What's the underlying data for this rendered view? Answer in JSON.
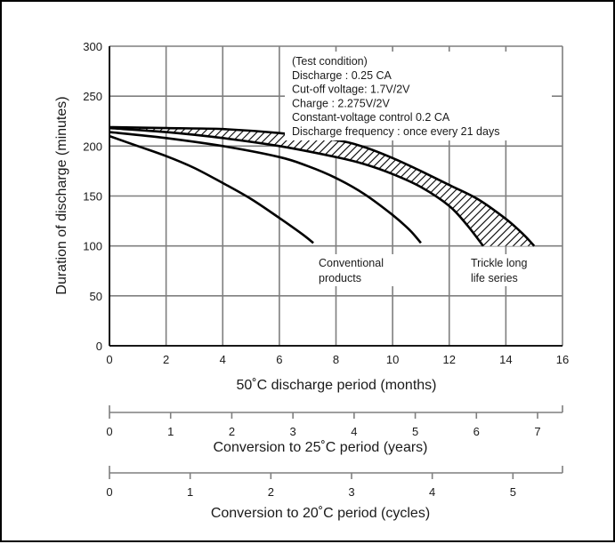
{
  "chart_data": {
    "type": "line",
    "xlabel": "50˚C discharge period (months)",
    "ylabel": "Duration of discharge (minutes)",
    "xlim": [
      0,
      16
    ],
    "ylim": [
      0,
      300
    ],
    "x_ticks": [
      "0",
      "2",
      "4",
      "6",
      "8",
      "10",
      "12",
      "14",
      "16"
    ],
    "y_ticks": [
      "0",
      "50",
      "100",
      "150",
      "200",
      "250",
      "300"
    ],
    "grid": true,
    "test_condition": [
      "(Test condition)",
      "Discharge : 0.25 CA",
      "Cut-off voltage: 1.7V/2V",
      "Charge : 2.275V/2V",
      "Constant-voltage control 0.2 CA",
      "Discharge frequency : once every 21 days"
    ],
    "series": [
      {
        "label_lines": [
          "Conventional",
          "products"
        ],
        "style": "line",
        "curves": [
          {
            "x": [
              0,
              1,
              2,
              3,
              4,
              5,
              6,
              6.8,
              7.2
            ],
            "y": [
              210,
              200,
              190,
              178,
              163,
              147,
              128,
              112,
              103
            ]
          },
          {
            "x": [
              0,
              2,
              4,
              6,
              7,
              8,
              9,
              10,
              10.6,
              11
            ],
            "y": [
              214,
              208,
              200,
              189,
              180,
              168,
              152,
              131,
              116,
              103
            ]
          }
        ]
      },
      {
        "label_lines": [
          "Trickle long",
          "life series"
        ],
        "style": "hatched-band",
        "band": {
          "lower": {
            "x": [
              0,
              2,
              4,
              6,
              8,
              9,
              10,
              11,
              12,
              12.6,
              13.2
            ],
            "y": [
              218,
              214,
              208,
              200,
              189,
              182,
              172,
              159,
              140,
              122,
              100
            ]
          },
          "upper": {
            "x": [
              0,
              2,
              4,
              6,
              8,
              9,
              10,
              11,
              12,
              13,
              14,
              14.6,
              15
            ],
            "y": [
              219,
              218,
              217,
              213,
              206,
              199,
              188,
              175,
              161,
              147,
              127,
              112,
              100
            ]
          }
        }
      }
    ],
    "secondary_axes": [
      {
        "label": "Conversion to 25˚C period (years)",
        "ticks": [
          "0",
          "1",
          "2",
          "3",
          "4",
          "5",
          "6",
          "7"
        ],
        "months_per_unit": 2.16
      },
      {
        "label": "Conversion to 20˚C period (cycles)",
        "ticks": [
          "0",
          "1",
          "2",
          "3",
          "4",
          "5"
        ],
        "months_per_unit": 2.85
      }
    ],
    "colors": {
      "line": "#000000",
      "grid": "#7f7f7f",
      "hatch": "#000000"
    }
  }
}
